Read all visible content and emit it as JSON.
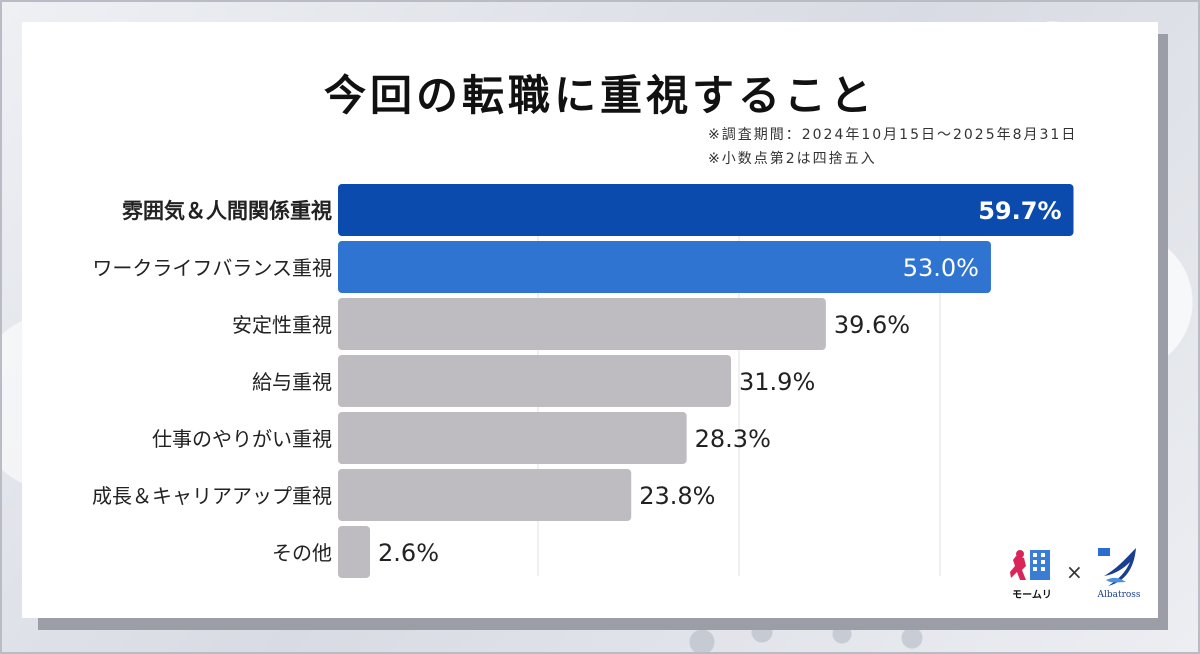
{
  "page": {
    "title": "今回の転職に重視すること",
    "note1": "※調査期間：2024年10月15日〜2025年8月31日",
    "note2": "※小数点第2は四捨五入"
  },
  "colors": {
    "top": "#0a4bad",
    "second": "#2f74d0",
    "rest": "#bfbcc1",
    "grid": "#e2e2e2"
  },
  "logos": {
    "left_icon": "momuri-logo-icon",
    "left_text": "モームリ",
    "separator": "×",
    "right_icon": "albatross-logo-icon",
    "right_text": "Albatross"
  },
  "chart_data": {
    "type": "bar",
    "orientation": "horizontal",
    "categories": [
      "雰囲気＆人間関係重視",
      "ワークライフバランス重視",
      "安定性重視",
      "給与重視",
      "仕事のやりがい重視",
      "成長＆キャリアアップ重視",
      "その他"
    ],
    "values": [
      59.7,
      53.0,
      39.6,
      31.9,
      28.3,
      23.8,
      2.6
    ],
    "labels": [
      "59.7%",
      "53.0%",
      "39.6%",
      "31.9%",
      "28.3%",
      "23.8%",
      "2.6%"
    ],
    "unit": "%",
    "title": "今回の転職に重視すること",
    "xlim": [
      0,
      60
    ],
    "grid": true,
    "legend": "none"
  }
}
